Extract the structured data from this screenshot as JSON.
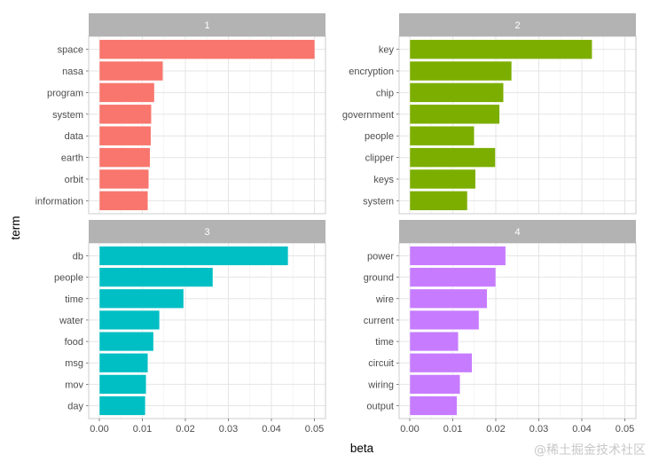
{
  "chart_data": {
    "type": "bar",
    "orientation": "horizontal",
    "title": "",
    "xlabel": "beta",
    "ylabel": "term",
    "xlim": [
      0,
      0.05
    ],
    "xticks": [
      "0.00",
      "0.01",
      "0.02",
      "0.03",
      "0.04",
      "0.05"
    ],
    "xtick_values": [
      0,
      0.01,
      0.02,
      0.03,
      0.04,
      0.05
    ],
    "grid": true,
    "legend": "none",
    "facets": [
      {
        "label": "1",
        "color": "#F8766D",
        "terms": [
          "space",
          "nasa",
          "program",
          "system",
          "data",
          "earth",
          "orbit",
          "information"
        ],
        "values": [
          0.0501,
          0.0148,
          0.0128,
          0.0121,
          0.012,
          0.0118,
          0.0115,
          0.0113
        ]
      },
      {
        "label": "2",
        "color": "#7CAE00",
        "terms": [
          "key",
          "encryption",
          "chip",
          "government",
          "people",
          "clipper",
          "keys",
          "system"
        ],
        "values": [
          0.0424,
          0.0237,
          0.0218,
          0.0209,
          0.015,
          0.0199,
          0.0153,
          0.0134
        ]
      },
      {
        "label": "3",
        "color": "#00BFC4",
        "terms": [
          "db",
          "people",
          "time",
          "water",
          "food",
          "msg",
          "mov",
          "day"
        ],
        "values": [
          0.0439,
          0.0264,
          0.0196,
          0.014,
          0.0126,
          0.0113,
          0.0109,
          0.0107
        ]
      },
      {
        "label": "4",
        "color": "#C77CFF",
        "terms": [
          "power",
          "ground",
          "wire",
          "current",
          "time",
          "circuit",
          "wiring",
          "output"
        ],
        "values": [
          0.0223,
          0.02,
          0.018,
          0.0161,
          0.0113,
          0.0145,
          0.0117,
          0.011
        ]
      }
    ]
  },
  "watermark": "@稀土掘金技术社区"
}
